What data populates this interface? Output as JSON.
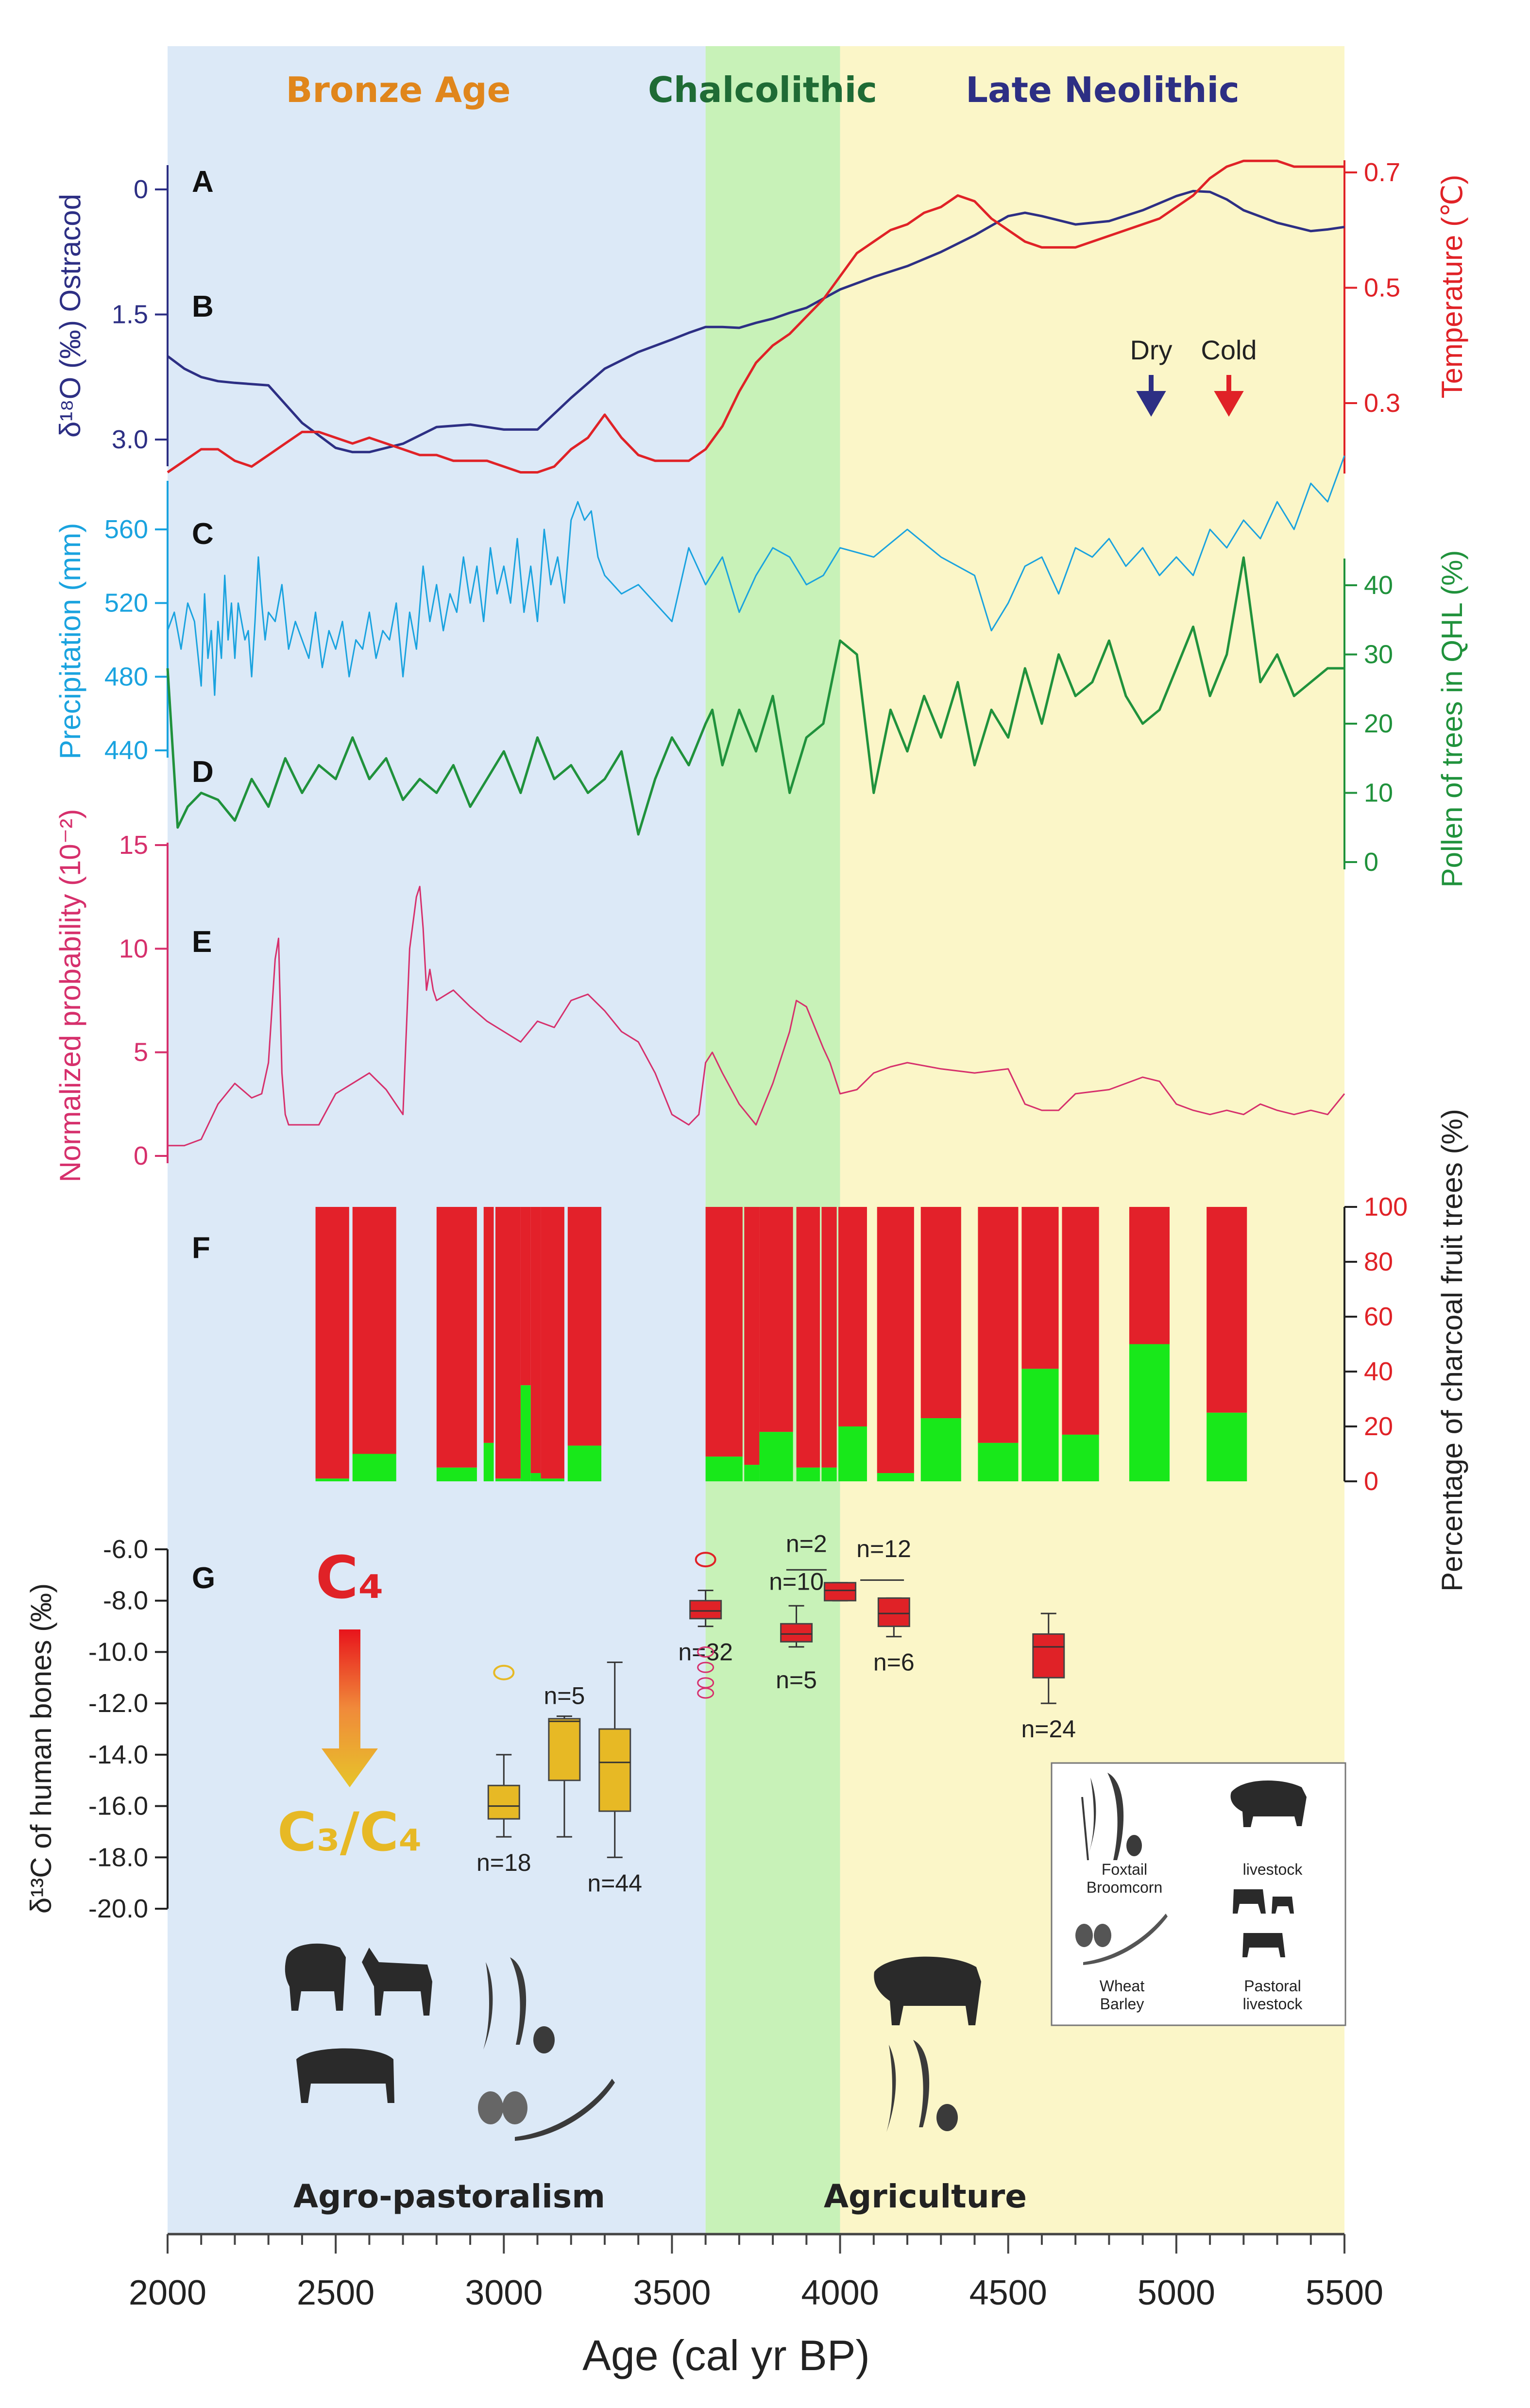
{
  "periods": {
    "bronze": "Bronze Age",
    "chalcolithic": "Chalcolithic",
    "neolithic": "Late Neolithic",
    "colors": {
      "bronze": "#e0861c",
      "chalcolithic": "#1f6b35",
      "neolithic": "#2d2f84"
    }
  },
  "annotations": {
    "dry": "Dry",
    "cold": "Cold",
    "c4": "C₄",
    "c3c4": "C₃/C₄",
    "agropastoralism": "Agro-pastoralism",
    "agriculture": "Agriculture"
  },
  "legend": {
    "foxtail": "Foxtail",
    "broomcorn": "Broomcorn",
    "livestock": "livestock",
    "wheat": "Wheat",
    "barley": "Barley",
    "pastoral": "Pastoral",
    "pastoral_livestock": "livestock"
  },
  "chart_data": {
    "type": "multi-panel stratigraphic",
    "x": {
      "label": "Age (cal yr BP)",
      "range": [
        2000,
        5500
      ],
      "ticks": [
        "2000",
        "2500",
        "3000",
        "3500",
        "4000",
        "4500",
        "5000",
        "5500"
      ],
      "shading": [
        {
          "from": 2000,
          "to": 3600,
          "color": "#dce9f7"
        },
        {
          "from": 3600,
          "to": 4000,
          "color": "#c8f2b8"
        },
        {
          "from": 4000,
          "to": 5500,
          "color": "#fbf6c8"
        }
      ]
    },
    "panels": [
      {
        "letter": "A",
        "ylabel": "δ¹⁸O (‰) Ostracod",
        "color": "#2d2f84",
        "ylim": [
          3.2,
          -0.3
        ],
        "ticks": [
          "0",
          "1.5",
          "3.0"
        ],
        "x": [
          2000,
          2050,
          2100,
          2150,
          2200,
          2300,
          2400,
          2500,
          2550,
          2600,
          2700,
          2800,
          2900,
          3000,
          3100,
          3200,
          3300,
          3400,
          3500,
          3550,
          3600,
          3650,
          3700,
          3750,
          3800,
          3850,
          3900,
          4000,
          4100,
          4200,
          4300,
          4400,
          4500,
          4550,
          4600,
          4700,
          4800,
          4900,
          5000,
          5050,
          5100,
          5150,
          5200,
          5300,
          5400,
          5450,
          5500
        ],
        "values": [
          2.0,
          2.15,
          2.25,
          2.3,
          2.32,
          2.35,
          2.8,
          3.1,
          3.15,
          3.15,
          3.05,
          2.85,
          2.82,
          2.88,
          2.88,
          2.5,
          2.15,
          1.95,
          1.8,
          1.72,
          1.65,
          1.65,
          1.66,
          1.6,
          1.55,
          1.48,
          1.42,
          1.2,
          1.05,
          0.92,
          0.75,
          0.55,
          0.32,
          0.28,
          0.32,
          0.42,
          0.38,
          0.25,
          0.08,
          0.02,
          0.03,
          0.12,
          0.25,
          0.4,
          0.5,
          0.48,
          0.45
        ]
      },
      {
        "letter": "B",
        "ylabel": "Temperature (℃)",
        "color": "#e02227",
        "ylim": [
          0.18,
          0.75
        ],
        "ticks": [
          "0.3",
          "0.5",
          "0.7"
        ],
        "x": [
          2000,
          2050,
          2100,
          2150,
          2200,
          2250,
          2300,
          2350,
          2400,
          2450,
          2500,
          2550,
          2600,
          2650,
          2700,
          2750,
          2800,
          2850,
          2900,
          2950,
          3000,
          3050,
          3100,
          3150,
          3200,
          3250,
          3300,
          3350,
          3400,
          3450,
          3500,
          3550,
          3600,
          3650,
          3700,
          3750,
          3800,
          3850,
          3900,
          3950,
          4000,
          4050,
          4100,
          4150,
          4200,
          4250,
          4300,
          4350,
          4400,
          4450,
          4500,
          4550,
          4600,
          4650,
          4700,
          4750,
          4800,
          4850,
          4900,
          4950,
          5000,
          5050,
          5100,
          5150,
          5200,
          5250,
          5300,
          5350,
          5400,
          5450,
          5500
        ],
        "values": [
          0.18,
          0.2,
          0.22,
          0.22,
          0.2,
          0.19,
          0.21,
          0.23,
          0.25,
          0.25,
          0.24,
          0.23,
          0.24,
          0.23,
          0.22,
          0.21,
          0.21,
          0.2,
          0.2,
          0.2,
          0.19,
          0.18,
          0.18,
          0.19,
          0.22,
          0.24,
          0.28,
          0.24,
          0.21,
          0.2,
          0.2,
          0.2,
          0.22,
          0.26,
          0.32,
          0.37,
          0.4,
          0.42,
          0.45,
          0.48,
          0.52,
          0.56,
          0.58,
          0.6,
          0.61,
          0.63,
          0.64,
          0.66,
          0.65,
          0.62,
          0.6,
          0.58,
          0.57,
          0.57,
          0.57,
          0.58,
          0.59,
          0.6,
          0.61,
          0.62,
          0.64,
          0.66,
          0.69,
          0.71,
          0.72,
          0.72,
          0.72,
          0.71,
          0.71,
          0.71,
          0.71
        ]
      },
      {
        "letter": "C",
        "ylabel": "Precipitation (mm)",
        "color": "#1aa3df",
        "ylim": [
          420,
          590
        ],
        "ticks": [
          "440",
          "480",
          "520",
          "560"
        ],
        "x": [
          2000,
          2020,
          2040,
          2060,
          2080,
          2100,
          2110,
          2120,
          2130,
          2140,
          2150,
          2160,
          2170,
          2180,
          2190,
          2200,
          2210,
          2220,
          2230,
          2240,
          2250,
          2260,
          2270,
          2280,
          2290,
          2300,
          2320,
          2340,
          2360,
          2380,
          2400,
          2420,
          2440,
          2460,
          2480,
          2500,
          2520,
          2540,
          2560,
          2580,
          2600,
          2620,
          2640,
          2660,
          2680,
          2700,
          2720,
          2740,
          2760,
          2780,
          2800,
          2820,
          2840,
          2860,
          2880,
          2900,
          2920,
          2940,
          2960,
          2980,
          3000,
          3020,
          3040,
          3060,
          3080,
          3100,
          3120,
          3140,
          3160,
          3180,
          3200,
          3220,
          3240,
          3260,
          3280,
          3300,
          3350,
          3400,
          3450,
          3500,
          3550,
          3600,
          3650,
          3700,
          3750,
          3800,
          3850,
          3900,
          3950,
          4000,
          4100,
          4200,
          4300,
          4400,
          4450,
          4500,
          4550,
          4600,
          4650,
          4700,
          4750,
          4800,
          4850,
          4900,
          4950,
          5000,
          5050,
          5100,
          5150,
          5200,
          5250,
          5300,
          5350,
          5400,
          5450,
          5500
        ],
        "values": [
          505,
          515,
          495,
          520,
          510,
          475,
          525,
          490,
          505,
          470,
          510,
          490,
          535,
          500,
          520,
          490,
          520,
          510,
          500,
          505,
          480,
          510,
          545,
          520,
          500,
          515,
          510,
          530,
          495,
          510,
          500,
          490,
          515,
          485,
          505,
          495,
          510,
          480,
          500,
          495,
          515,
          490,
          505,
          500,
          520,
          480,
          515,
          495,
          540,
          510,
          530,
          505,
          525,
          515,
          545,
          520,
          540,
          510,
          550,
          525,
          540,
          520,
          555,
          515,
          540,
          510,
          560,
          530,
          545,
          520,
          565,
          575,
          565,
          570,
          545,
          535,
          525,
          530,
          520,
          510,
          550,
          530,
          545,
          515,
          535,
          550,
          545,
          530,
          535,
          550,
          545,
          560,
          545,
          535,
          505,
          520,
          540,
          545,
          525,
          550,
          545,
          555,
          540,
          550,
          535,
          545,
          535,
          560,
          550,
          565,
          555,
          575,
          560,
          585,
          575,
          600
        ],
        "points_note": "approximate high-frequency record"
      },
      {
        "letter": "D",
        "ylabel": "Pollen of trees in QHL (%)",
        "color": "#20923c",
        "ylim": [
          0,
          45
        ],
        "ticks": [
          "0",
          "10",
          "20",
          "30",
          "40"
        ],
        "x": [
          2000,
          2030,
          2060,
          2100,
          2150,
          2200,
          2250,
          2300,
          2350,
          2400,
          2450,
          2500,
          2550,
          2600,
          2650,
          2700,
          2750,
          2800,
          2850,
          2900,
          2950,
          3000,
          3050,
          3100,
          3150,
          3200,
          3250,
          3300,
          3350,
          3400,
          3450,
          3500,
          3550,
          3600,
          3620,
          3650,
          3700,
          3750,
          3800,
          3850,
          3900,
          3950,
          4000,
          4050,
          4100,
          4150,
          4200,
          4250,
          4300,
          4350,
          4400,
          4450,
          4500,
          4550,
          4600,
          4650,
          4700,
          4750,
          4800,
          4850,
          4900,
          4950,
          5000,
          5050,
          5100,
          5150,
          5200,
          5250,
          5300,
          5350,
          5400,
          5450,
          5500
        ],
        "values": [
          28,
          5,
          8,
          10,
          9,
          6,
          12,
          8,
          15,
          10,
          14,
          12,
          18,
          12,
          15,
          9,
          12,
          10,
          14,
          8,
          12,
          16,
          10,
          18,
          12,
          14,
          10,
          12,
          16,
          4,
          12,
          18,
          14,
          20,
          22,
          14,
          22,
          16,
          24,
          10,
          18,
          20,
          32,
          30,
          10,
          22,
          16,
          24,
          18,
          26,
          14,
          22,
          18,
          28,
          20,
          30,
          24,
          26,
          32,
          24,
          20,
          22,
          28,
          34,
          24,
          30,
          44,
          26,
          30,
          24,
          26,
          28,
          28
        ]
      },
      {
        "letter": "E",
        "ylabel": "Normalized probability (10⁻²)",
        "color": "#d6306c",
        "ylim": [
          0,
          15
        ],
        "ticks": [
          "0",
          "5",
          "10",
          "15"
        ],
        "x": [
          2000,
          2050,
          2100,
          2150,
          2200,
          2250,
          2280,
          2300,
          2310,
          2320,
          2330,
          2340,
          2350,
          2360,
          2380,
          2400,
          2450,
          2500,
          2550,
          2600,
          2650,
          2700,
          2720,
          2740,
          2750,
          2760,
          2770,
          2780,
          2790,
          2800,
          2850,
          2900,
          2950,
          3000,
          3050,
          3100,
          3150,
          3200,
          3250,
          3300,
          3350,
          3400,
          3450,
          3500,
          3550,
          3580,
          3600,
          3620,
          3650,
          3700,
          3750,
          3800,
          3850,
          3870,
          3900,
          3930,
          3950,
          3970,
          4000,
          4050,
          4100,
          4150,
          4200,
          4300,
          4400,
          4500,
          4550,
          4600,
          4650,
          4700,
          4800,
          4900,
          4950,
          5000,
          5050,
          5100,
          5150,
          5200,
          5250,
          5300,
          5350,
          5400,
          5450,
          5500
        ],
        "values": [
          0.5,
          0.5,
          0.8,
          2.5,
          3.5,
          2.8,
          3.0,
          4.5,
          7.0,
          9.5,
          10.5,
          4.0,
          2.0,
          1.5,
          1.5,
          1.5,
          1.5,
          3.0,
          3.5,
          4.0,
          3.2,
          2.0,
          10.0,
          12.5,
          13.0,
          11.0,
          8.0,
          9.0,
          8.0,
          7.5,
          8.0,
          7.2,
          6.5,
          6.0,
          5.5,
          6.5,
          6.2,
          7.5,
          7.8,
          7.0,
          6.0,
          5.5,
          4.0,
          2.0,
          1.5,
          2.0,
          4.5,
          5.0,
          4.0,
          2.5,
          1.5,
          3.5,
          6.0,
          7.5,
          7.2,
          6.0,
          5.2,
          4.5,
          3.0,
          3.2,
          4.0,
          4.3,
          4.5,
          4.2,
          4.0,
          4.2,
          2.5,
          2.2,
          2.2,
          3.0,
          3.2,
          3.8,
          3.6,
          2.5,
          2.2,
          2.0,
          2.2,
          2.0,
          2.5,
          2.2,
          2.0,
          2.2,
          2.0,
          3.0
        ]
      },
      {
        "letter": "F",
        "ylabel": "Percentage of charcoal fruit trees (%)",
        "color": "#e02227",
        "ylim": [
          0,
          100
        ],
        "ticks": [
          "0",
          "20",
          "40",
          "60",
          "80",
          "100"
        ],
        "bars": [
          {
            "from": 2440,
            "to": 2540,
            "green": 1
          },
          {
            "from": 2550,
            "to": 2680,
            "green": 10
          },
          {
            "from": 2800,
            "to": 2920,
            "green": 5
          },
          {
            "from": 2940,
            "to": 2970,
            "green": 14
          },
          {
            "from": 2975,
            "to": 3050,
            "green": 1
          },
          {
            "from": 3050,
            "to": 3080,
            "green": 35
          },
          {
            "from": 3080,
            "to": 3110,
            "green": 3
          },
          {
            "from": 3110,
            "to": 3180,
            "green": 1
          },
          {
            "from": 3190,
            "to": 3290,
            "green": 13
          },
          {
            "from": 3600,
            "to": 3710,
            "green": 9
          },
          {
            "from": 3715,
            "to": 3760,
            "green": 6
          },
          {
            "from": 3760,
            "to": 3860,
            "green": 18
          },
          {
            "from": 3870,
            "to": 3940,
            "green": 5
          },
          {
            "from": 3945,
            "to": 3990,
            "green": 5
          },
          {
            "from": 3995,
            "to": 4080,
            "green": 20
          },
          {
            "from": 4110,
            "to": 4220,
            "green": 3
          },
          {
            "from": 4240,
            "to": 4360,
            "green": 23
          },
          {
            "from": 4410,
            "to": 4530,
            "green": 14
          },
          {
            "from": 4540,
            "to": 4650,
            "green": 41
          },
          {
            "from": 4660,
            "to": 4770,
            "green": 17
          },
          {
            "from": 4860,
            "to": 4980,
            "green": 50
          },
          {
            "from": 5090,
            "to": 5210,
            "green": 25
          }
        ]
      },
      {
        "letter": "G",
        "ylabel": "δ¹³C of human bones (‰)",
        "ylim": [
          -20,
          -6
        ],
        "ticks": [
          "-6.0",
          "-8.0",
          "-10.0",
          "-12.0",
          "-14.0",
          "-16.0",
          "-18.0",
          "-20.0"
        ],
        "boxes": [
          {
            "x": 3000,
            "lo": -17.2,
            "q1": -16.5,
            "med": -16.0,
            "q3": -15.2,
            "hi": -14.0,
            "color": "#e7b925",
            "label": "n=18",
            "outlier": -10.8
          },
          {
            "x": 3180,
            "lo": -17.2,
            "q1": -15.0,
            "med": -12.7,
            "q3": -12.6,
            "hi": -12.5,
            "color": "#e7b925",
            "label": "n=5"
          },
          {
            "x": 3330,
            "lo": -18.0,
            "q1": -16.2,
            "med": -14.3,
            "q3": -13.0,
            "hi": -10.4,
            "color": "#e7b925",
            "label": "n=44"
          },
          {
            "x": 3600,
            "lo": -9.0,
            "q1": -8.7,
            "med": -8.4,
            "q3": -8.0,
            "hi": -7.6,
            "color": "#e02227",
            "label": "n=32",
            "outlier": -6.4
          },
          {
            "x": 3870,
            "lo": -9.8,
            "q1": -9.6,
            "med": -9.3,
            "q3": -8.9,
            "hi": -8.2,
            "color": "#e02227",
            "label": "n=5"
          },
          {
            "x": 4000,
            "lo": -8.0,
            "q1": -8.0,
            "med": -7.6,
            "q3": -7.3,
            "hi": -7.3,
            "color": "#e02227",
            "label": "n=10"
          },
          {
            "x": 4160,
            "lo": -9.4,
            "q1": -9.0,
            "med": -8.5,
            "q3": -7.9,
            "hi": -7.9,
            "color": "#e02227",
            "label": "n=6"
          },
          {
            "x": 4620,
            "lo": -12.0,
            "q1": -11.0,
            "med": -9.8,
            "q3": -9.3,
            "hi": -8.5,
            "color": "#e02227",
            "label": "n=24"
          }
        ],
        "extra_labels": [
          "n=2",
          "n=12"
        ]
      }
    ]
  }
}
